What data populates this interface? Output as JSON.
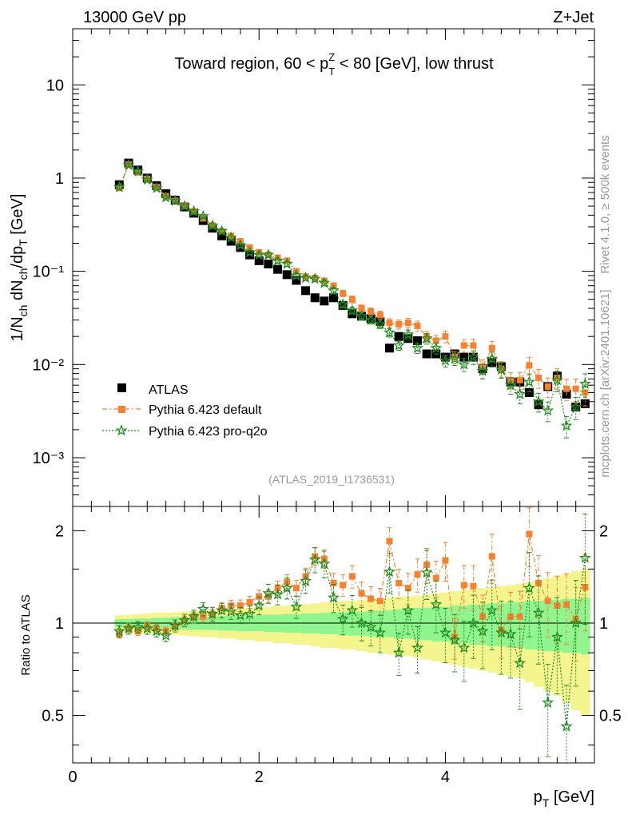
{
  "header": {
    "energy_label": "13000 GeV pp",
    "process_label": "Z+Jet",
    "title_prefix": "Toward region, 60 < p",
    "title_sup": "Z",
    "title_sub": "T",
    "title_suffix": " < 80 [GeV], low thrust",
    "analysis_id": "(ATLAS_2019_I1736531)",
    "rivet_label": "Rivet 4.1.0, ≥ 500k events",
    "mcplots_label": "mcplots.cern.ch [arXiv:2401.10621]"
  },
  "axes": {
    "ylabel_main": "1/N_ch dN_ch/dp_T [GeV]",
    "ylabel_ratio": "Ratio to ATLAS",
    "xlabel": "p_T [GeV]",
    "x_ticks": [
      "0",
      "2",
      "4"
    ],
    "main_y_ticks": [
      "10⁻³",
      "10⁻²",
      "10⁻¹",
      "1",
      "10"
    ],
    "ratio_y_ticks": [
      "0.5",
      "1",
      "2"
    ]
  },
  "legend": {
    "atlas": "ATLAS",
    "default": "Pythia 6.423 default",
    "proq2o": "Pythia 6.423 pro-q2o"
  },
  "colors": {
    "atlas": "#000000",
    "default": "#f58231",
    "proq2o": "#1e8c1e",
    "band_inner": "#8ff58f",
    "band_outer": "#f5f58f"
  },
  "chart_data": {
    "type": "scatter",
    "x": [
      0.5,
      0.6,
      0.7,
      0.8,
      0.9,
      1.0,
      1.1,
      1.2,
      1.3,
      1.4,
      1.5,
      1.6,
      1.7,
      1.8,
      1.9,
      2.0,
      2.1,
      2.2,
      2.3,
      2.4,
      2.5,
      2.6,
      2.7,
      2.8,
      2.9,
      3.0,
      3.1,
      3.2,
      3.3,
      3.4,
      3.5,
      3.6,
      3.7,
      3.8,
      3.9,
      4.0,
      4.1,
      4.2,
      4.3,
      4.4,
      4.5,
      4.6,
      4.7,
      4.8,
      4.9,
      5.0,
      5.1,
      5.2,
      5.3,
      5.4,
      5.5
    ],
    "xlim": [
      0,
      5.6
    ],
    "main_ylim": [
      0.0003,
      40
    ],
    "main_yscale": "log",
    "ratio_ylim": [
      0.35,
      2.4
    ],
    "ratio_yscale": "log",
    "series": [
      {
        "name": "ATLAS",
        "values": [
          0.85,
          1.45,
          1.22,
          1.0,
          0.83,
          0.68,
          0.58,
          0.49,
          0.42,
          0.35,
          0.29,
          0.24,
          0.21,
          0.18,
          0.15,
          0.13,
          0.12,
          0.105,
          0.092,
          0.08,
          0.062,
          0.052,
          0.048,
          0.052,
          0.043,
          0.035,
          0.033,
          0.031,
          0.029,
          0.015,
          0.02,
          0.019,
          0.018,
          0.013,
          0.013,
          0.012,
          0.013,
          0.012,
          0.012,
          0.009,
          0.0105,
          0.0095,
          0.0065,
          0.0065,
          0.005,
          0.0037,
          0.0058,
          0.0075,
          0.0048,
          0.0035,
          0.0038
        ]
      },
      {
        "name": "Pythia 6.423 default",
        "values": [
          0.78,
          1.4,
          1.15,
          0.98,
          0.8,
          0.64,
          0.57,
          0.5,
          0.44,
          0.37,
          0.31,
          0.27,
          0.24,
          0.21,
          0.18,
          0.16,
          0.15,
          0.14,
          0.13,
          0.1,
          0.088,
          0.085,
          0.079,
          0.07,
          0.058,
          0.05,
          0.04,
          0.037,
          0.034,
          0.028,
          0.027,
          0.028,
          0.026,
          0.02,
          0.018,
          0.02,
          0.012,
          0.016,
          0.016,
          0.0095,
          0.015,
          0.009,
          0.0068,
          0.0068,
          0.0098,
          0.0072,
          0.0058,
          0.0072,
          0.0055,
          0.0055,
          0.005
        ]
      },
      {
        "name": "Pythia 6.423 pro-q2o",
        "values": [
          0.8,
          1.38,
          1.18,
          0.96,
          0.78,
          0.62,
          0.57,
          0.5,
          0.44,
          0.39,
          0.31,
          0.27,
          0.23,
          0.19,
          0.16,
          0.15,
          0.15,
          0.13,
          0.12,
          0.09,
          0.085,
          0.083,
          0.075,
          0.062,
          0.044,
          0.038,
          0.033,
          0.03,
          0.027,
          0.022,
          0.016,
          0.021,
          0.015,
          0.019,
          0.015,
          0.011,
          0.0115,
          0.01,
          0.012,
          0.0085,
          0.0115,
          0.0088,
          0.006,
          0.0048,
          0.0065,
          0.004,
          0.0032,
          0.0068,
          0.0022,
          0.0035,
          0.0062
        ]
      }
    ],
    "ratio_series": [
      {
        "name": "Pythia 6.423 default",
        "values": [
          0.92,
          0.96,
          0.94,
          0.98,
          0.96,
          0.94,
          0.98,
          1.02,
          1.05,
          1.05,
          1.07,
          1.12,
          1.14,
          1.14,
          1.17,
          1.22,
          1.22,
          1.3,
          1.36,
          1.3,
          1.42,
          1.65,
          1.62,
          1.35,
          1.33,
          1.42,
          1.25,
          1.2,
          1.18,
          1.85,
          1.35,
          1.3,
          1.44,
          1.55,
          1.4,
          1.6,
          0.9,
          1.33,
          1.32,
          1.05,
          1.65,
          0.95,
          1.05,
          1.05,
          1.95,
          1.35,
          1.18,
          1.14,
          1.15,
          1.03,
          1.31
        ]
      },
      {
        "name": "Pythia 6.423 pro-q2o",
        "values": [
          0.94,
          0.96,
          0.97,
          0.96,
          0.94,
          0.91,
          0.98,
          1.02,
          1.05,
          1.11,
          1.07,
          1.1,
          1.09,
          1.06,
          1.07,
          1.14,
          1.25,
          1.24,
          1.3,
          1.13,
          1.37,
          1.61,
          1.56,
          1.21,
          1.03,
          1.1,
          1.0,
          0.97,
          0.93,
          1.47,
          0.8,
          1.1,
          0.83,
          1.46,
          1.15,
          0.93,
          0.88,
          0.83,
          1.0,
          0.94,
          1.1,
          0.93,
          0.92,
          0.74,
          1.3,
          1.08,
          0.55,
          0.9,
          0.46,
          1.0,
          1.63
        ]
      }
    ],
    "band_inner_halfwidth": [
      0.03,
      0.03,
      0.035,
      0.035,
      0.04,
      0.04,
      0.045,
      0.045,
      0.05,
      0.05,
      0.05,
      0.055,
      0.055,
      0.06,
      0.06,
      0.06,
      0.065,
      0.065,
      0.07,
      0.07,
      0.075,
      0.075,
      0.08,
      0.08,
      0.085,
      0.09,
      0.09,
      0.095,
      0.1,
      0.1,
      0.11,
      0.11,
      0.12,
      0.12,
      0.13,
      0.13,
      0.14,
      0.14,
      0.15,
      0.15,
      0.16,
      0.16,
      0.17,
      0.17,
      0.18,
      0.18,
      0.19,
      0.19,
      0.2,
      0.2,
      0.21
    ],
    "band_outer_halfwidth": [
      0.06,
      0.065,
      0.07,
      0.075,
      0.08,
      0.08,
      0.085,
      0.09,
      0.095,
      0.1,
      0.1,
      0.11,
      0.11,
      0.12,
      0.12,
      0.13,
      0.13,
      0.14,
      0.14,
      0.15,
      0.15,
      0.16,
      0.17,
      0.17,
      0.18,
      0.18,
      0.19,
      0.2,
      0.2,
      0.21,
      0.22,
      0.22,
      0.23,
      0.24,
      0.25,
      0.26,
      0.27,
      0.28,
      0.29,
      0.3,
      0.31,
      0.32,
      0.33,
      0.34,
      0.36,
      0.38,
      0.4,
      0.42,
      0.45,
      0.48,
      0.5
    ]
  }
}
